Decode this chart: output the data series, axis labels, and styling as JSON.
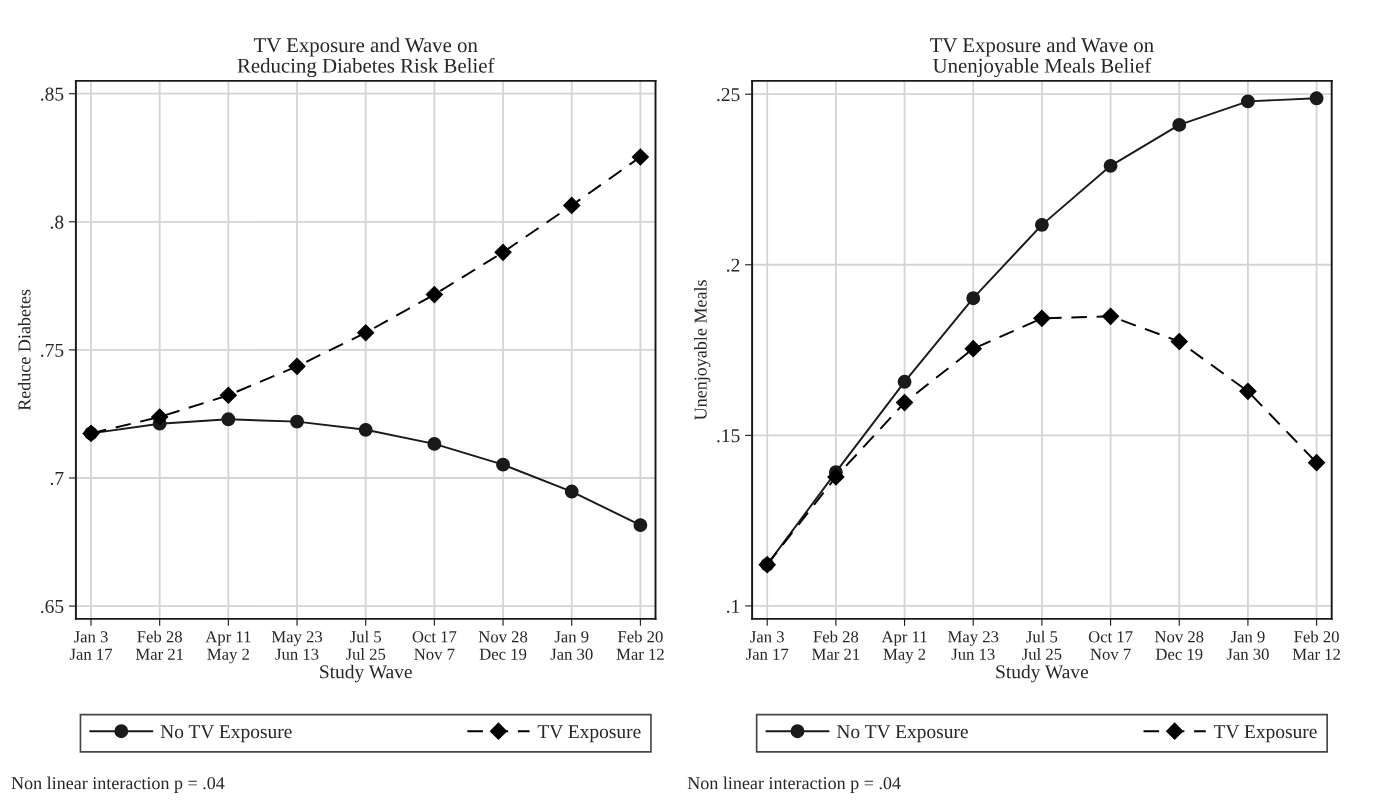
{
  "chart_data": [
    {
      "type": "line",
      "title": "TV Exposure and Wave on\nReducing Diabetes Risk Belief",
      "xlabel": "Study Wave",
      "ylabel": "Reduce Diabetes",
      "categories": [
        "Jan 3\nJan 17",
        "Feb 28\nMar 21",
        "Apr 11\nMay 2",
        "May 23\nJun 13",
        "Jul 5\nJul 25",
        "Oct 17\nNov 7",
        "Nov 28\nDec 19",
        "Jan 9\nJan 30",
        "Feb 20\nMar 12"
      ],
      "series": [
        {
          "name": "No TV Exposure",
          "color": "#1a1a1a",
          "marker": "circle",
          "line_style": "solid",
          "values": [
            0.7174,
            0.7212,
            0.7229,
            0.722,
            0.7188,
            0.7133,
            0.7052,
            0.6947,
            0.6816
          ]
        },
        {
          "name": "TV Exposure",
          "color": "#000000",
          "marker": "diamond",
          "line_style": "dashed",
          "values": [
            0.7174,
            0.7238,
            0.7323,
            0.7436,
            0.7567,
            0.7716,
            0.7881,
            0.8064,
            0.8253
          ]
        }
      ],
      "ylim": [
        0.645,
        0.855
      ],
      "yticks": [
        {
          "value": 0.65,
          "label": ".65"
        },
        {
          "value": 0.7,
          "label": ".7"
        },
        {
          "value": 0.75,
          "label": ".75"
        },
        {
          "value": 0.8,
          "label": ".8"
        },
        {
          "value": 0.85,
          "label": ".85"
        }
      ],
      "grid": true,
      "legend": "bottom",
      "annotations": [
        "Non linear interaction p = .04"
      ]
    },
    {
      "type": "line",
      "title": "TV Exposure and Wave on\nUnenjoyable Meals Belief",
      "xlabel": "Study Wave",
      "ylabel": "Unenjoyable Meals",
      "categories": [
        "Jan 3\nJan 17",
        "Feb 28\nMar 21",
        "Apr 11\nMay 2",
        "May 23\nJun 13",
        "Jul 5\nJul 25",
        "Oct 17\nNov 7",
        "Nov 28\nDec 19",
        "Jan 9\nJan 30",
        "Feb 20\nMar 12"
      ],
      "series": [
        {
          "name": "No TV Exposure",
          "color": "#1a1a1a",
          "marker": "circle",
          "line_style": "solid",
          "values": [
            0.1121,
            0.1392,
            0.1657,
            0.1902,
            0.2117,
            0.229,
            0.241,
            0.2479,
            0.2488
          ]
        },
        {
          "name": "TV Exposure",
          "color": "#000000",
          "marker": "diamond",
          "line_style": "dashed",
          "values": [
            0.1121,
            0.1378,
            0.1596,
            0.1754,
            0.1843,
            0.1849,
            0.1775,
            0.1629,
            0.142
          ]
        }
      ],
      "ylim": [
        0.0962,
        0.2539
      ],
      "yticks": [
        {
          "value": 0.1,
          "label": ".1"
        },
        {
          "value": 0.15,
          "label": ".15"
        },
        {
          "value": 0.2,
          "label": ".2"
        },
        {
          "value": 0.25,
          "label": ".25"
        }
      ],
      "grid": true,
      "legend": "bottom",
      "annotations": [
        "Non linear interaction p = .04"
      ]
    }
  ]
}
